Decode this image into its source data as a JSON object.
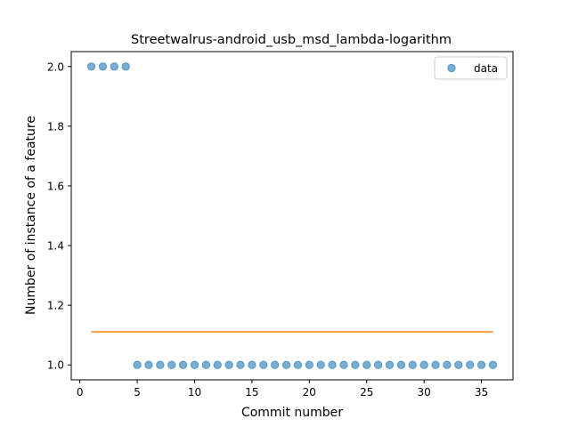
{
  "chart_data": {
    "type": "scatter",
    "title": "Streetwalrus-android_usb_msd_lambda-logarithm",
    "xlabel": "Commit number",
    "ylabel": "Number of instance of a feature",
    "xlim": [
      -0.75,
      37.75
    ],
    "ylim": [
      0.95,
      2.05
    ],
    "xticks": [
      0,
      5,
      10,
      15,
      20,
      25,
      30,
      35
    ],
    "yticks": [
      1.0,
      1.2,
      1.4,
      1.6,
      1.8,
      2.0
    ],
    "ytick_labels": [
      "1.0",
      "1.2",
      "1.4",
      "1.6",
      "1.8",
      "2.0"
    ],
    "grid": false,
    "legend_position": "upper right",
    "series": [
      {
        "name": "data",
        "kind": "scatter",
        "color": "#1f77b4",
        "x": [
          1,
          2,
          3,
          4,
          5,
          6,
          7,
          8,
          9,
          10,
          11,
          12,
          13,
          14,
          15,
          16,
          17,
          18,
          19,
          20,
          21,
          22,
          23,
          24,
          25,
          26,
          27,
          28,
          29,
          30,
          31,
          32,
          33,
          34,
          35,
          36
        ],
        "y": [
          2,
          2,
          2,
          2,
          1,
          1,
          1,
          1,
          1,
          1,
          1,
          1,
          1,
          1,
          1,
          1,
          1,
          1,
          1,
          1,
          1,
          1,
          1,
          1,
          1,
          1,
          1,
          1,
          1,
          1,
          1,
          1,
          1,
          1,
          1,
          1
        ]
      },
      {
        "kind": "line",
        "color": "#ff7f0e",
        "x": [
          1,
          36
        ],
        "y": [
          1.111,
          1.111
        ]
      }
    ]
  }
}
